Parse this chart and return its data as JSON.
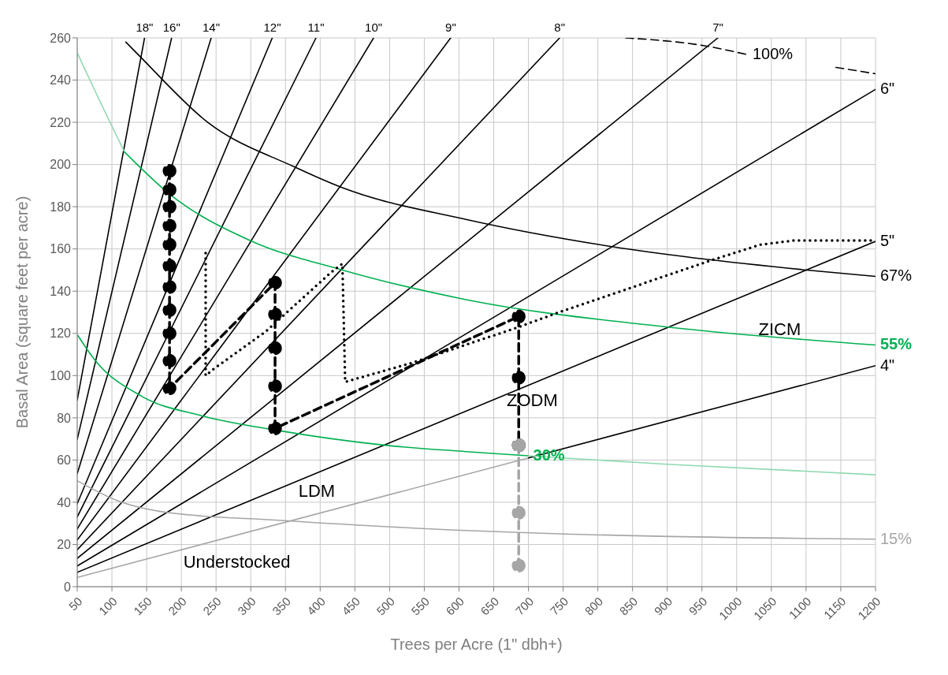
{
  "chart_data": {
    "type": "line",
    "xlabel": "Trees per Acre (1\" dbh+)",
    "ylabel": "Basal Area (square feet per acre)",
    "xlim": [
      50,
      1200
    ],
    "xticks": [
      50,
      100,
      150,
      200,
      250,
      300,
      350,
      400,
      450,
      500,
      550,
      600,
      650,
      700,
      750,
      800,
      850,
      900,
      950,
      1000,
      1050,
      1100,
      1150,
      1200
    ],
    "ylim": [
      0,
      260
    ],
    "yticks": [
      0,
      20,
      40,
      60,
      80,
      100,
      120,
      140,
      160,
      180,
      200,
      220,
      240,
      260
    ],
    "grid": true,
    "marker": "none",
    "line_style": "solid",
    "series": [
      {
        "name": "18\"",
        "color": "#000000",
        "x": [
          50,
          147
        ],
        "values": [
          88.4,
          260
        ]
      },
      {
        "name": "16\"",
        "color": "#000000",
        "x": [
          50,
          186
        ],
        "values": [
          69.8,
          260
        ]
      },
      {
        "name": "14\"",
        "color": "#000000",
        "x": [
          50,
          243
        ],
        "values": [
          53.5,
          260
        ]
      },
      {
        "name": "12\"",
        "color": "#000000",
        "x": [
          50,
          331
        ],
        "values": [
          39.3,
          260
        ]
      },
      {
        "name": "11\"",
        "color": "#000000",
        "x": [
          50,
          394
        ],
        "values": [
          33,
          260
        ]
      },
      {
        "name": "10\"",
        "color": "#000000",
        "x": [
          50,
          477
        ],
        "values": [
          27.3,
          260
        ]
      },
      {
        "name": "9\"",
        "color": "#000000",
        "x": [
          50,
          588
        ],
        "values": [
          22.1,
          260
        ]
      },
      {
        "name": "8\"",
        "color": "#000000",
        "x": [
          50,
          745
        ],
        "values": [
          17.5,
          260
        ]
      },
      {
        "name": "7\"",
        "color": "#000000",
        "x": [
          50,
          973
        ],
        "values": [
          13.4,
          260
        ]
      },
      {
        "name": "6\"",
        "color": "#000000",
        "x": [
          50,
          1200
        ],
        "values": [
          9.8,
          235.6
        ]
      },
      {
        "name": "5\"",
        "color": "#000000",
        "x": [
          50,
          1200
        ],
        "values": [
          6.8,
          163.6
        ]
      },
      {
        "color": "#a6a6a6",
        "x": [
          50,
          700
        ],
        "values": [
          4.4,
          61
        ]
      },
      {
        "name": "4\"",
        "color": "#000000",
        "x": [
          700,
          1200
        ],
        "values": [
          61,
          104.7
        ]
      },
      {
        "name": "100%",
        "color": "#000000",
        "line_style": "dashed",
        "x": [
          840,
          958,
          1016,
          1080,
          1143,
          1200
        ],
        "values": [
          260,
          256,
          252,
          null,
          246,
          243
        ]
      },
      {
        "name": "67%",
        "color": "#000000",
        "x": [
          120,
          141,
          238,
          362,
          432,
          610,
          822,
          1101,
          1200
        ],
        "values": [
          258,
          251,
          220,
          199,
          189,
          174,
          161,
          150,
          147
        ]
      },
      {
        "color": "#8fd9b0",
        "x": [
          50,
          74,
          118
        ],
        "values": [
          253,
          236,
          206
        ]
      },
      {
        "name": "55%",
        "color": "#00b050",
        "x": [
          118,
          183,
          299,
          432,
          610,
          900,
          1200
        ],
        "values": [
          206,
          186,
          164,
          150,
          136,
          123,
          114.5
        ]
      },
      {
        "name": "30%",
        "color": "#00b050",
        "x": [
          51,
          74,
          144,
          229,
          339,
          494,
          610,
          700
        ],
        "values": [
          119,
          108,
          90,
          81,
          74,
          67,
          64,
          62
        ]
      },
      {
        "color": "#8fd9b0",
        "x": [
          700,
          900,
          1200
        ],
        "values": [
          62,
          58,
          53
        ]
      },
      {
        "name": "15%",
        "color": "#a6a6a6",
        "x": [
          51,
          106,
          183,
          339,
          610,
          1200
        ],
        "values": [
          50,
          41,
          35,
          31.5,
          26.6,
          22.5
        ]
      },
      {
        "color": "#000000",
        "line_style": "dashed",
        "marker": "circle",
        "x": [
          183,
          183,
          183,
          183,
          183,
          183,
          183,
          183,
          183,
          183,
          183,
          335,
          335,
          335,
          335,
          335,
          686,
          686,
          686
        ],
        "values": [
          197,
          188,
          180,
          171,
          162,
          152,
          142,
          131,
          120,
          107,
          94,
          144,
          129,
          113,
          95,
          75,
          128,
          99,
          67
        ]
      },
      {
        "color": "#a6a6a6",
        "line_style": "dashed",
        "marker": "circle",
        "x": [
          686,
          686,
          686
        ],
        "values": [
          67,
          35,
          10
        ]
      },
      {
        "color": "#000000",
        "line_style": "dotted",
        "x": [
          235,
          235,
          246,
          322,
          416,
          432,
          436,
          532,
          686,
          744,
          967,
          1034,
          1083,
          1194
        ],
        "values": [
          158,
          100,
          103,
          121,
          149,
          153,
          97,
          106,
          123,
          130,
          155,
          162,
          164,
          164
        ]
      }
    ],
    "annotations": [
      "ZICM",
      "ZODM",
      "LDM",
      "Understocked"
    ]
  }
}
